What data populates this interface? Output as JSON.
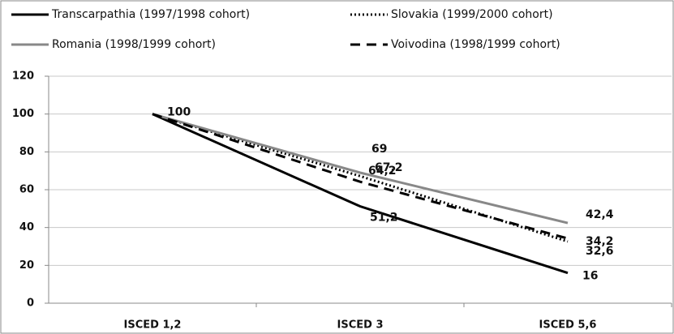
{
  "chart_data": {
    "type": "line",
    "categories": [
      "ISCED 1,2",
      "ISCED 3",
      "ISCED 5,6"
    ],
    "series": [
      {
        "name": "Transcarpathia (1997/1998 cohort)",
        "color": "#000000",
        "style": "solid",
        "values": [
          100,
          51.2,
          16
        ],
        "value_labels": [
          "100",
          "51,2",
          "16"
        ]
      },
      {
        "name": "Slovakia (1999/2000 cohort)",
        "color": "#000000",
        "style": "dotted",
        "values": [
          100,
          67.2,
          32.6
        ],
        "value_labels": [
          null,
          "67,2",
          "32,6"
        ]
      },
      {
        "name": "Romania (1998/1999 cohort)",
        "color": "#888888",
        "style": "solid",
        "values": [
          100,
          69,
          42.4
        ],
        "value_labels": [
          null,
          "69",
          "42,4"
        ]
      },
      {
        "name": "Voivodina (1998/1999 cohort)",
        "color": "#000000",
        "style": "dashed",
        "values": [
          100,
          64.2,
          34.2
        ],
        "value_labels": [
          null,
          "64,2",
          "34,2"
        ]
      }
    ],
    "ylim": [
      0,
      120
    ],
    "yticks": [
      0,
      20,
      40,
      60,
      80,
      100,
      120
    ],
    "grid": true
  }
}
